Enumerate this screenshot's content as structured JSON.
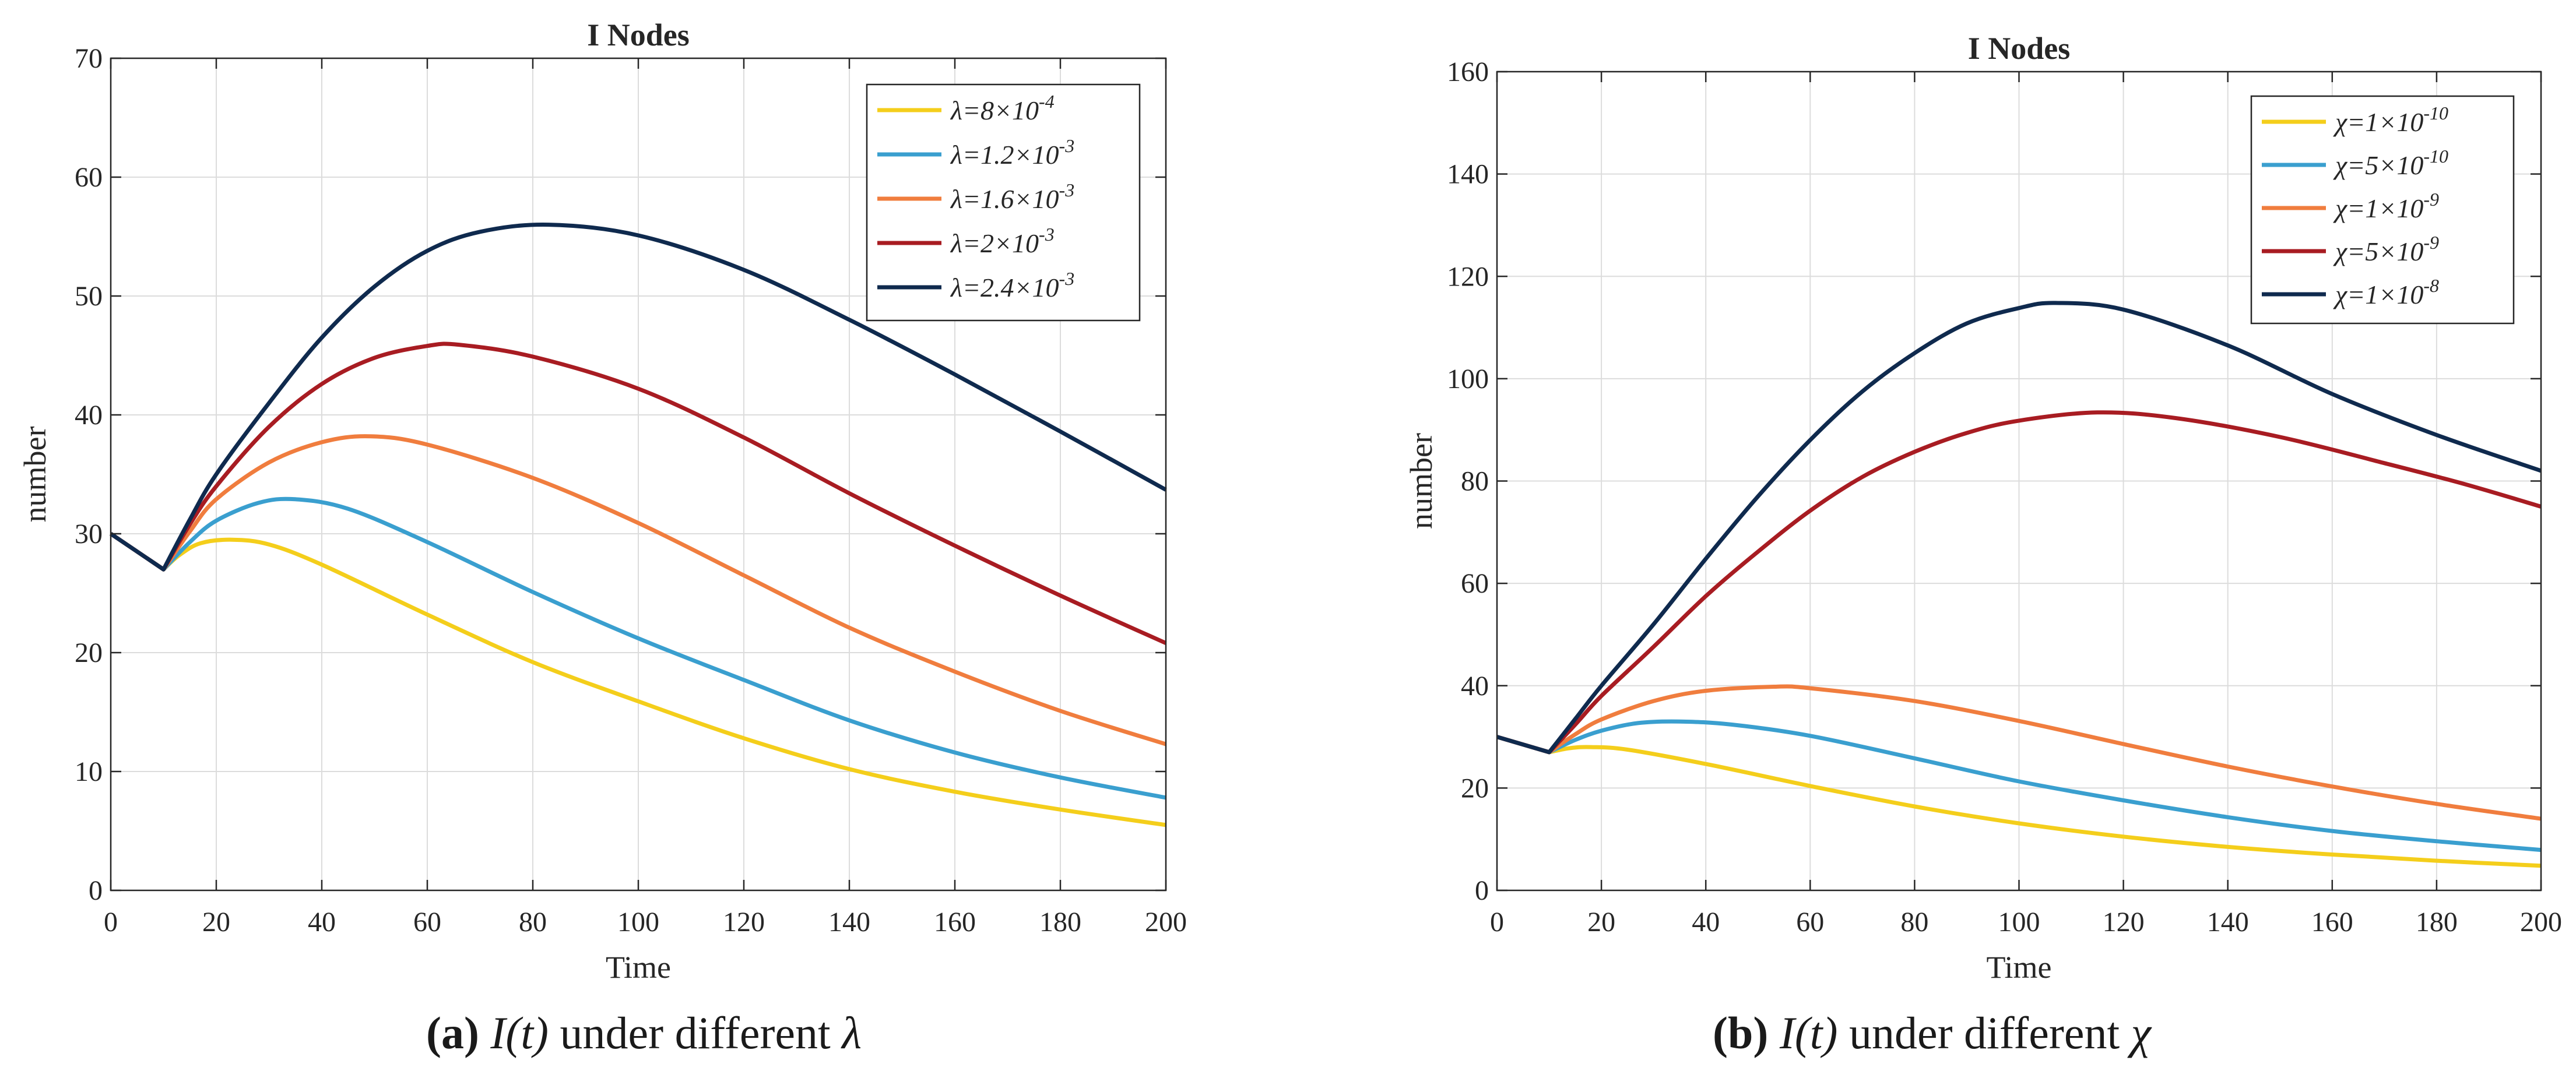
{
  "chart_data": [
    {
      "type": "line",
      "title": "I Nodes",
      "xlabel": "Time",
      "ylabel": "number",
      "xlim": [
        0,
        200
      ],
      "ylim": [
        0,
        70
      ],
      "xticks": [
        0,
        20,
        40,
        60,
        80,
        100,
        120,
        140,
        160,
        180,
        200
      ],
      "yticks": [
        0,
        10,
        20,
        30,
        40,
        50,
        60,
        70
      ],
      "grid": true,
      "legend_position": "top-right",
      "caption": {
        "label": "(a)",
        "expr": "I(t)",
        "text": "under different",
        "symbol": "λ"
      },
      "series": [
        {
          "name": "λ=8×10^-4",
          "legend": {
            "sym": "λ",
            "base": "8×10",
            "exp": "-4"
          },
          "color": "#F4CE1B",
          "x": [
            0,
            10,
            13,
            17,
            23,
            30,
            40,
            60,
            80,
            100,
            120,
            140,
            160,
            180,
            200
          ],
          "y": [
            30,
            27,
            28.2,
            29.2,
            29.5,
            29.1,
            27.4,
            23.2,
            19.2,
            15.9,
            12.8,
            10.2,
            8.3,
            6.8,
            5.5
          ]
        },
        {
          "name": "λ=1.2×10^-3",
          "legend": {
            "sym": "λ",
            "base": "1.2×10",
            "exp": "-3"
          },
          "color": "#3A9FCF",
          "x": [
            0,
            10,
            15,
            20,
            28,
            35,
            45,
            60,
            80,
            100,
            120,
            140,
            160,
            180,
            200
          ],
          "y": [
            30,
            27,
            29.3,
            31.1,
            32.6,
            32.9,
            32.1,
            29.3,
            25.1,
            21.2,
            17.7,
            14.3,
            11.6,
            9.5,
            7.8
          ]
        },
        {
          "name": "λ=1.6×10^-3",
          "legend": {
            "sym": "λ",
            "base": "1.6×10",
            "exp": "-3"
          },
          "color": "#F07D3E",
          "x": [
            0,
            10,
            15,
            20,
            30,
            40,
            49,
            60,
            80,
            100,
            120,
            140,
            160,
            180,
            200
          ],
          "y": [
            30,
            27,
            30.2,
            32.9,
            36,
            37.7,
            38.2,
            37.5,
            34.7,
            30.9,
            26.5,
            22.1,
            18.4,
            15.1,
            12.3
          ]
        },
        {
          "name": "λ=2×10^-3",
          "legend": {
            "sym": "λ",
            "base": "2×10",
            "exp": "-3"
          },
          "color": "#A81C22",
          "x": [
            0,
            10,
            15,
            20,
            30,
            40,
            50,
            60,
            66,
            80,
            100,
            120,
            140,
            160,
            180,
            200
          ],
          "y": [
            30,
            27,
            30.8,
            34,
            39,
            42.6,
            44.8,
            45.8,
            45.9,
            44.9,
            42.2,
            38.1,
            33.4,
            29,
            24.8,
            20.8
          ]
        },
        {
          "name": "λ=2.4×10^-3",
          "legend": {
            "sym": "λ",
            "base": "2.4×10",
            "exp": "-3"
          },
          "color": "#0F2A4E",
          "x": [
            0,
            10,
            15,
            20,
            30,
            40,
            50,
            60,
            70,
            83,
            100,
            120,
            140,
            160,
            180,
            200
          ],
          "y": [
            30,
            27,
            31.2,
            35,
            41,
            46.5,
            50.8,
            53.8,
            55.4,
            56,
            55.1,
            52.2,
            48,
            43.4,
            38.6,
            33.7
          ]
        }
      ]
    },
    {
      "type": "line",
      "title": "I Nodes",
      "xlabel": "Time",
      "ylabel": "number",
      "xlim": [
        0,
        200
      ],
      "ylim": [
        0,
        160
      ],
      "xticks": [
        0,
        20,
        40,
        60,
        80,
        100,
        120,
        140,
        160,
        180,
        200
      ],
      "yticks": [
        0,
        20,
        40,
        60,
        80,
        100,
        120,
        140,
        160
      ],
      "grid": true,
      "legend_position": "top-right",
      "caption": {
        "label": "(b)",
        "expr": "I(t)",
        "text": "under different",
        "symbol": "χ"
      },
      "series": [
        {
          "name": "χ=1×10^-10",
          "legend": {
            "sym": "χ",
            "base": "1×10",
            "exp": "-10"
          },
          "color": "#F4CE1B",
          "x": [
            0,
            10,
            14,
            18,
            25,
            40,
            60,
            80,
            100,
            120,
            140,
            160,
            180,
            200
          ],
          "y": [
            30,
            27,
            27.8,
            28,
            27.5,
            24.7,
            20.4,
            16.4,
            13.1,
            10.5,
            8.5,
            7,
            5.8,
            4.8
          ]
        },
        {
          "name": "χ=5×10^-10",
          "legend": {
            "sym": "χ",
            "base": "5×10",
            "exp": "-10"
          },
          "color": "#3A9FCF",
          "x": [
            0,
            10,
            15,
            20,
            27,
            35,
            45,
            60,
            80,
            100,
            120,
            140,
            160,
            180,
            200
          ],
          "y": [
            30,
            27,
            29.4,
            31.2,
            32.7,
            33,
            32.4,
            30.2,
            25.8,
            21.3,
            17.6,
            14.3,
            11.6,
            9.6,
            7.9
          ]
        },
        {
          "name": "χ=1×10^-9",
          "legend": {
            "sym": "χ",
            "base": "1×10",
            "exp": "-9"
          },
          "color": "#F07D3E",
          "x": [
            0,
            10,
            15,
            20,
            30,
            40,
            53,
            60,
            80,
            100,
            120,
            140,
            160,
            180,
            200
          ],
          "y": [
            30,
            27,
            30.5,
            33.4,
            37,
            39,
            39.8,
            39.5,
            37,
            33.1,
            28.6,
            24.2,
            20.3,
            16.9,
            14
          ]
        },
        {
          "name": "χ=5×10^-9",
          "legend": {
            "sym": "χ",
            "base": "5×10",
            "exp": "-9"
          },
          "color": "#A81C22",
          "x": [
            0,
            10,
            15,
            20,
            30,
            40,
            50,
            60,
            70,
            80,
            90,
            100,
            115,
            130,
            150,
            170,
            185,
            200
          ],
          "y": [
            30,
            27,
            32.4,
            38,
            47.6,
            57.5,
            66.2,
            74.2,
            80.8,
            85.7,
            89.4,
            91.8,
            93.4,
            92.3,
            88.6,
            83.5,
            79.5,
            75
          ]
        },
        {
          "name": "χ=1×10^-8",
          "legend": {
            "sym": "χ",
            "base": "1×10",
            "exp": "-8"
          },
          "color": "#0F2A4E",
          "x": [
            0,
            10,
            15,
            20,
            30,
            40,
            50,
            60,
            70,
            80,
            90,
            100,
            107,
            120,
            140,
            160,
            180,
            200
          ],
          "y": [
            30,
            27,
            33.5,
            40,
            52,
            64.8,
            77,
            88,
            97.5,
            105,
            110.8,
            113.8,
            114.8,
            113.5,
            106.5,
            97,
            89,
            82
          ]
        }
      ]
    }
  ]
}
